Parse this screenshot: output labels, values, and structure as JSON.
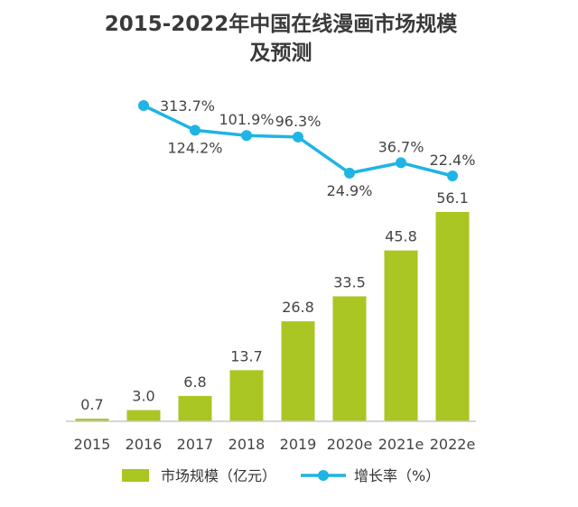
{
  "chart_data": {
    "type": "bar",
    "title_lines": [
      "2015-2022年中国在线漫画市场规模",
      "及预测"
    ],
    "categories": [
      "2015",
      "2016",
      "2017",
      "2018",
      "2019",
      "2020e",
      "2021e",
      "2022e"
    ],
    "bar_series": {
      "name": "市场规模（亿元）",
      "values": [
        0.7,
        3.0,
        6.8,
        13.7,
        26.8,
        33.5,
        45.8,
        56.1
      ],
      "labels": [
        "0.7",
        "3.0",
        "6.8",
        "13.7",
        "26.8",
        "33.5",
        "45.8",
        "56.1"
      ],
      "color": "#a9c623"
    },
    "line_series": {
      "name": "增长率（%）",
      "values": [
        null,
        313.7,
        124.2,
        101.9,
        96.3,
        24.9,
        36.7,
        22.4
      ],
      "labels": [
        "",
        "313.7%",
        "124.2%",
        "101.9%",
        "96.3%",
        "24.9%",
        "36.7%",
        "22.4%"
      ],
      "color": "#1fb4e4"
    },
    "ylim_bar": [
      0,
      56.1
    ],
    "grid": false,
    "legend": "bottom-center"
  }
}
